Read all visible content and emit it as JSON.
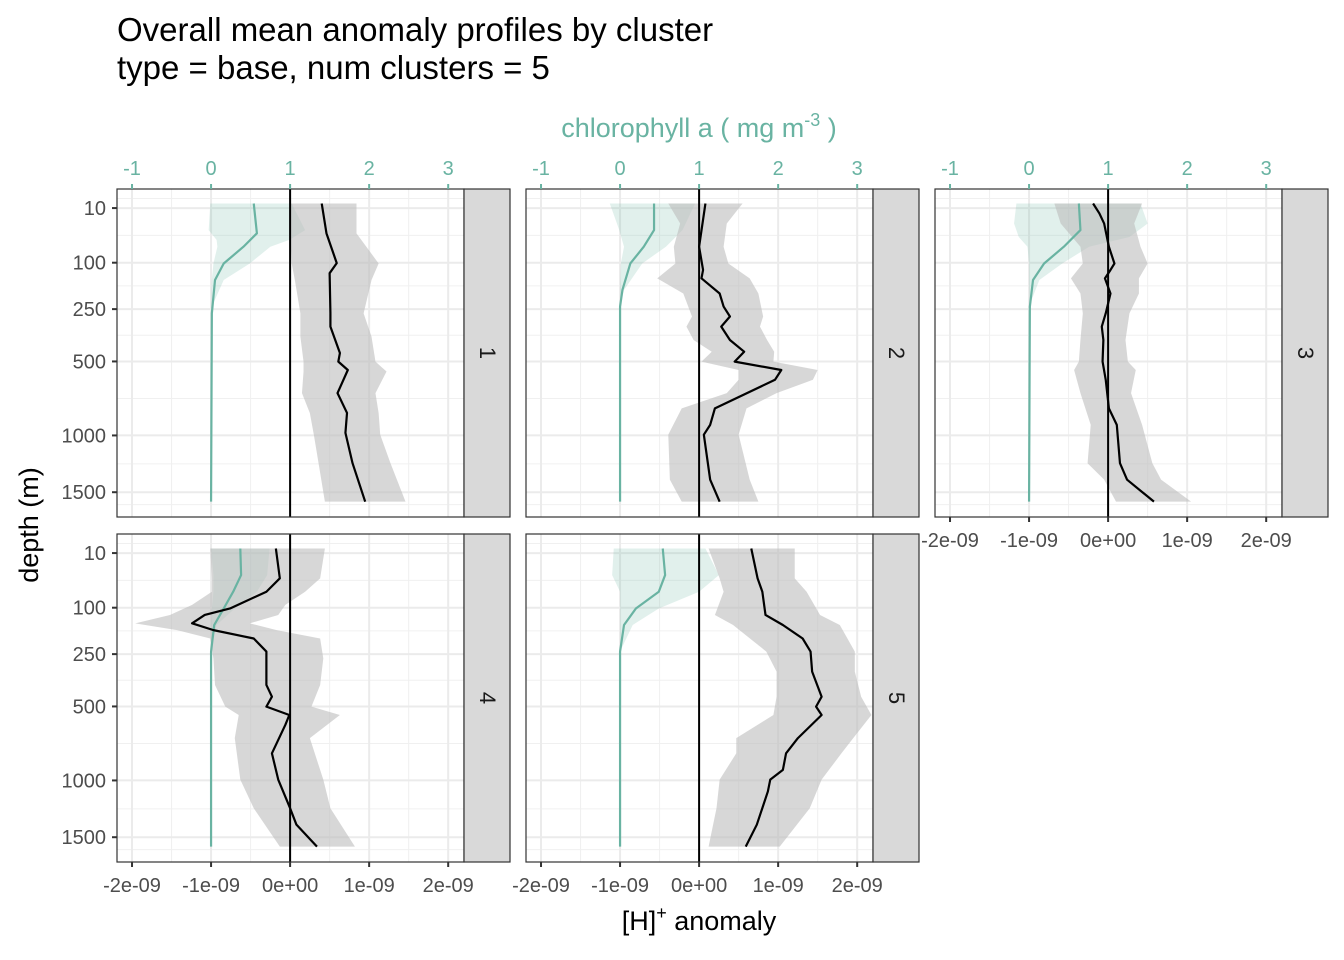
{
  "chart_data": {
    "type": "line",
    "title": "Overall mean anomaly profiles by cluster",
    "subtitle": "type = base, num clusters = 5",
    "xlabel": {
      "main": "[H]",
      "sup": "+",
      "rest": " anomaly"
    },
    "x2label": {
      "main": "chlorophyll a ( mg m",
      "sup": "-3",
      "rest": " )"
    },
    "ylabel": "depth (m)",
    "x_unit": 1e-09,
    "x_ticks": [
      -2,
      -1,
      0,
      1,
      2
    ],
    "x_tick_labels": [
      "-2e-09",
      "-1e-09",
      "0e+00",
      "1e-09",
      "2e-09"
    ],
    "x2_ticks": [
      -1,
      0,
      1,
      2,
      3
    ],
    "x2_tick_labels": [
      "-1",
      "0",
      "1",
      "2",
      "3"
    ],
    "x2_transform": "chl = H/1e-09 + 1",
    "xlim": [
      -2.19,
      2.2
    ],
    "y_ticks": [
      10,
      100,
      250,
      500,
      1000,
      1500
    ],
    "y_tick_labels": [
      "10",
      "100",
      "250",
      "500",
      "1000",
      "1500"
    ],
    "y_transform": "reverse sqrt",
    "ylim": [
      0.6,
      1750
    ],
    "grid": true,
    "colors": {
      "h": "#000000",
      "h_band": "#bdbdbd",
      "chl": "#69b3a2",
      "chl_band": "#69b3a2",
      "strip": "#d9d9d9"
    },
    "panels": [
      {
        "label": "1",
        "h_line": {
          "depth": [
            6.7,
            40,
            101,
            128,
            266,
            324,
            454,
            501,
            549,
            693,
            830,
            980,
            1232,
            1593
          ],
          "value": [
            0.4,
            0.46,
            0.59,
            0.5,
            0.51,
            0.51,
            0.63,
            0.61,
            0.73,
            0.6,
            0.72,
            0.7,
            0.79,
            0.95
          ]
        },
        "h_band": {
          "depth": [
            6.7,
            40,
            102,
            148,
            267,
            371,
            501,
            558,
            693,
            831,
            994,
            1232,
            1593
          ],
          "lo": [
            0,
            0,
            0.02,
            0.06,
            0.13,
            0.13,
            0.17,
            0.17,
            0.15,
            0.25,
            0.3,
            0.36,
            0.44
          ],
          "hi": [
            0.84,
            0.84,
            1.12,
            1.03,
            0.93,
            1.03,
            1.08,
            1.22,
            1.08,
            1.12,
            1.14,
            1.27,
            1.46
          ]
        },
        "chl_line": {
          "depth": [
            6.7,
            40,
            64,
            102,
            148,
            267,
            1593
          ],
          "value": [
            0.54,
            0.58,
            0.41,
            0.16,
            0.05,
            0.01,
            0
          ]
        },
        "chl_band": {
          "depth": [
            6.7,
            35,
            51,
            64,
            102,
            148,
            240,
            1593
          ],
          "lo": [
            -0.01,
            -0.03,
            0.07,
            0.08,
            0.03,
            0.01,
            0,
            0
          ],
          "hi": [
            1.02,
            1.19,
            0.99,
            0.75,
            0.49,
            0.16,
            0.01,
            0
          ]
        }
      },
      {
        "label": "2",
        "h_line": {
          "depth": [
            6.7,
            64,
            119,
            143,
            192,
            240,
            280,
            324,
            387,
            447,
            501,
            549,
            608,
            797,
            918,
            994,
            1381,
            1593
          ],
          "value": [
            0.08,
            0,
            0.05,
            0.03,
            0.26,
            0.31,
            0.39,
            0.28,
            0.39,
            0.57,
            0.45,
            1.04,
            0.96,
            0.2,
            0.14,
            0.06,
            0.14,
            0.26
          ]
        },
        "h_band": {
          "depth": [
            6.7,
            26,
            64,
            102,
            143,
            192,
            280,
            324,
            387,
            447,
            501,
            549,
            608,
            693,
            797,
            994,
            1381,
            1593
          ],
          "lo": [
            -0.39,
            -0.24,
            -0.32,
            -0.3,
            -0.53,
            -0.2,
            -0.09,
            -0.16,
            -0.07,
            0.16,
            0.03,
            0.5,
            0.5,
            0.35,
            -0.22,
            -0.39,
            -0.37,
            -0.22
          ],
          "hi": [
            0.55,
            0.35,
            0.31,
            0.37,
            0.64,
            0.75,
            0.81,
            0.77,
            0.86,
            0.95,
            0.94,
            1.5,
            1.44,
            0.98,
            0.6,
            0.5,
            0.64,
            0.75
          ]
        },
        "chl_line": {
          "depth": [
            6.7,
            35,
            64,
            102,
            180,
            240,
            1593
          ],
          "value": [
            0.43,
            0.43,
            0.3,
            0.13,
            0.03,
            0,
            0
          ]
        },
        "chl_band": {
          "depth": [
            6.7,
            35,
            64,
            102,
            180,
            240,
            1593
          ],
          "lo": [
            -0.13,
            -0.01,
            0.05,
            0.01,
            0,
            0,
            0
          ],
          "hi": [
            0.95,
            0.79,
            0.58,
            0.28,
            0.05,
            0,
            0
          ]
        }
      },
      {
        "label": "3",
        "h_line": {
          "depth": [
            6.7,
            14.7,
            26,
            64,
            102,
            119,
            143,
            192,
            267,
            324,
            387,
            501,
            608,
            797,
            918,
            1232,
            1381,
            1593
          ],
          "value": [
            -0.19,
            -0.11,
            -0.05,
            0.01,
            0.08,
            0.03,
            -0.04,
            0.03,
            -0.03,
            -0.08,
            -0.06,
            -0.07,
            -0.03,
            0.01,
            0.11,
            0.15,
            0.24,
            0.58
          ]
        },
        "h_band": {
          "depth": [
            6.7,
            26,
            64,
            102,
            143,
            192,
            267,
            387,
            501,
            549,
            693,
            918,
            1232,
            1381,
            1593
          ],
          "lo": [
            -0.68,
            -0.6,
            -0.35,
            -0.32,
            -0.47,
            -0.35,
            -0.32,
            -0.35,
            -0.37,
            -0.43,
            -0.35,
            -0.22,
            -0.26,
            -0.05,
            0.1
          ],
          "hi": [
            0.43,
            0.33,
            0.41,
            0.5,
            0.39,
            0.39,
            0.27,
            0.22,
            0.25,
            0.35,
            0.29,
            0.43,
            0.56,
            0.67,
            1.05
          ]
        },
        "chl_line": {
          "depth": [
            6.7,
            35,
            64,
            102,
            148,
            240,
            1593
          ],
          "value": [
            0.63,
            0.65,
            0.44,
            0.19,
            0.05,
            0.01,
            0
          ]
        },
        "chl_band": {
          "depth": [
            6.7,
            26,
            46,
            64,
            102,
            148,
            240,
            1593
          ],
          "lo": [
            -0.16,
            -0.19,
            -0.13,
            -0.02,
            0,
            0,
            0,
            0
          ],
          "hi": [
            1.41,
            1.5,
            1.27,
            0.76,
            0.42,
            0.13,
            0,
            0
          ]
        }
      },
      {
        "label": "4",
        "h_line": {
          "depth": [
            6.7,
            40,
            64,
            102,
            119,
            143,
            164,
            192,
            240,
            324,
            387,
            447,
            501,
            549,
            608,
            797,
            994,
            1232,
            1381,
            1593
          ],
          "value": [
            -0.18,
            -0.13,
            -0.3,
            -0.76,
            -1.08,
            -1.24,
            -0.97,
            -0.46,
            -0.3,
            -0.3,
            -0.3,
            -0.23,
            -0.3,
            -0.01,
            -0.06,
            -0.23,
            -0.15,
            0,
            0.08,
            0.34
          ]
        },
        "h_band": {
          "depth": [
            6.7,
            40,
            64,
            93,
            119,
            143,
            164,
            192,
            267,
            387,
            501,
            549,
            693,
            994,
            1232,
            1593
          ],
          "lo": [
            -1.01,
            -0.99,
            -0.99,
            -1.24,
            -1.52,
            -1.96,
            -1.43,
            -1.01,
            -0.97,
            -0.95,
            -0.82,
            -0.65,
            -0.7,
            -0.63,
            -0.46,
            -0.13
          ],
          "hi": [
            0.44,
            0.38,
            0.19,
            -0.06,
            -0.15,
            -0.51,
            -0.17,
            0.38,
            0.42,
            0.38,
            0.27,
            0.63,
            0.25,
            0.42,
            0.51,
            0.82
          ]
        },
        "chl_line": {
          "depth": [
            6.7,
            35,
            64,
            102,
            148,
            240,
            1593
          ],
          "value": [
            0.37,
            0.38,
            0.28,
            0.16,
            0.04,
            0,
            0
          ]
        },
        "chl_band": {
          "depth": [
            6.7,
            35,
            64,
            102,
            148,
            240,
            1593
          ],
          "lo": [
            0,
            0.03,
            0.03,
            0.01,
            0,
            0,
            0
          ],
          "hi": [
            0.74,
            0.71,
            0.58,
            0.3,
            0.07,
            0,
            0
          ]
        }
      },
      {
        "label": "5",
        "h_line": {
          "depth": [
            6.7,
            40,
            64,
            119,
            148,
            192,
            240,
            324,
            447,
            501,
            549,
            693,
            797,
            918,
            994,
            1089,
            1381,
            1593
          ],
          "value": [
            0.66,
            0.74,
            0.8,
            0.84,
            1.06,
            1.31,
            1.41,
            1.43,
            1.55,
            1.48,
            1.55,
            1.25,
            1.1,
            1.06,
            0.9,
            0.87,
            0.73,
            0.59
          ]
        },
        "h_band": {
          "depth": [
            6.7,
            40,
            64,
            119,
            148,
            240,
            324,
            447,
            549,
            693,
            797,
            994,
            1232,
            1593
          ],
          "lo": [
            0.12,
            0.26,
            0.31,
            0.2,
            0.43,
            0.85,
            0.98,
            0.98,
            0.94,
            0.47,
            0.47,
            0.26,
            0.22,
            0.12
          ],
          "hi": [
            1.21,
            1.21,
            1.36,
            1.53,
            1.78,
            1.97,
            1.97,
            2.05,
            2.18,
            1.95,
            1.8,
            1.55,
            1.4,
            1.02
          ]
        },
        "chl_line": {
          "depth": [
            6.7,
            35,
            64,
            102,
            148,
            240,
            1593
          ],
          "value": [
            0.54,
            0.57,
            0.49,
            0.2,
            0.05,
            0,
            0
          ]
        },
        "chl_band": {
          "depth": [
            6.7,
            35,
            64,
            102,
            148,
            240,
            1593
          ],
          "lo": [
            -0.08,
            -0.1,
            0,
            0,
            0,
            0,
            0
          ],
          "hi": [
            1.08,
            1.25,
            1.0,
            0.49,
            0.16,
            0,
            0
          ]
        }
      }
    ]
  }
}
